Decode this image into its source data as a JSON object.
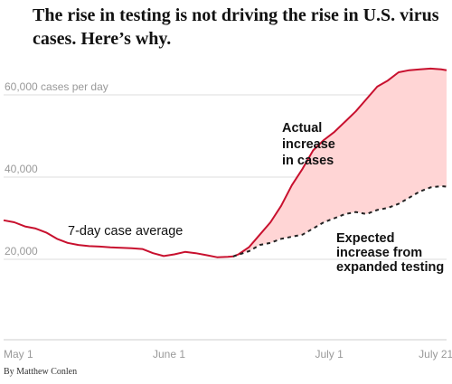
{
  "chart_data": {
    "type": "line",
    "title": "The rise in testing is not driving the rise in U.S. virus cases. Here’s why.",
    "byline": "By Matthew Conlen",
    "xlabel": "",
    "ylabel": "",
    "y_unit_label": "cases per day",
    "xlim": [
      0,
      83
    ],
    "ylim": [
      0,
      70000
    ],
    "x_ticks": [
      {
        "label": "May 1",
        "x": 0
      },
      {
        "label": "June 1",
        "x": 31
      },
      {
        "label": "July 1",
        "x": 61
      },
      {
        "label": "July 21",
        "x": 81
      }
    ],
    "y_ticks": [
      {
        "label": "60,000",
        "value": 60000
      },
      {
        "label": "40,000",
        "value": 40000
      },
      {
        "label": "20,000",
        "value": 20000
      }
    ],
    "grid": true,
    "colors": {
      "actual": "#c8102e",
      "expected": "#222222",
      "fill": "#ffd5d5",
      "grid": "#dddddd",
      "baseline": "#cccccc"
    },
    "series": [
      {
        "name": "7-day case average",
        "style": "solid",
        "x": [
          0,
          2,
          4,
          6,
          8,
          10,
          12,
          14,
          16,
          18,
          20,
          22,
          24,
          26,
          28,
          30,
          32,
          34,
          36,
          38,
          40,
          42,
          43,
          44,
          46,
          48,
          50,
          52,
          54,
          56,
          58,
          60,
          62,
          64,
          66,
          68,
          70,
          72,
          74,
          76,
          78,
          80,
          82,
          83
        ],
        "y": [
          29500,
          29000,
          28000,
          27500,
          26500,
          25000,
          24000,
          23500,
          23200,
          23100,
          22900,
          22800,
          22700,
          22500,
          21500,
          20800,
          21200,
          21800,
          21500,
          21000,
          20500,
          20600,
          20700,
          21200,
          23000,
          26000,
          29000,
          33000,
          38000,
          42000,
          46500,
          49000,
          51000,
          53500,
          56000,
          59000,
          62000,
          63500,
          65500,
          66000,
          66200,
          66400,
          66200,
          66000
        ]
      },
      {
        "name": "Expected increase from expanded testing",
        "style": "dashed",
        "x": [
          43,
          46,
          48,
          50,
          52,
          54,
          56,
          58,
          60,
          62,
          64,
          66,
          68,
          70,
          72,
          74,
          76,
          78,
          80,
          82,
          83
        ],
        "y": [
          20700,
          22000,
          23500,
          24000,
          25000,
          25500,
          26000,
          27500,
          29000,
          30000,
          31000,
          31500,
          31000,
          32000,
          32500,
          33500,
          35000,
          36500,
          37500,
          37800,
          37700
        ]
      }
    ],
    "annotations": [
      {
        "text_lines": [
          "7-day case average"
        ],
        "weight": "normal"
      },
      {
        "text_lines": [
          "Actual",
          "increase",
          "in cases"
        ],
        "weight": "bold"
      },
      {
        "text_lines": [
          "Expected",
          "increase from",
          "expanded testing"
        ],
        "weight": "bold"
      }
    ]
  }
}
